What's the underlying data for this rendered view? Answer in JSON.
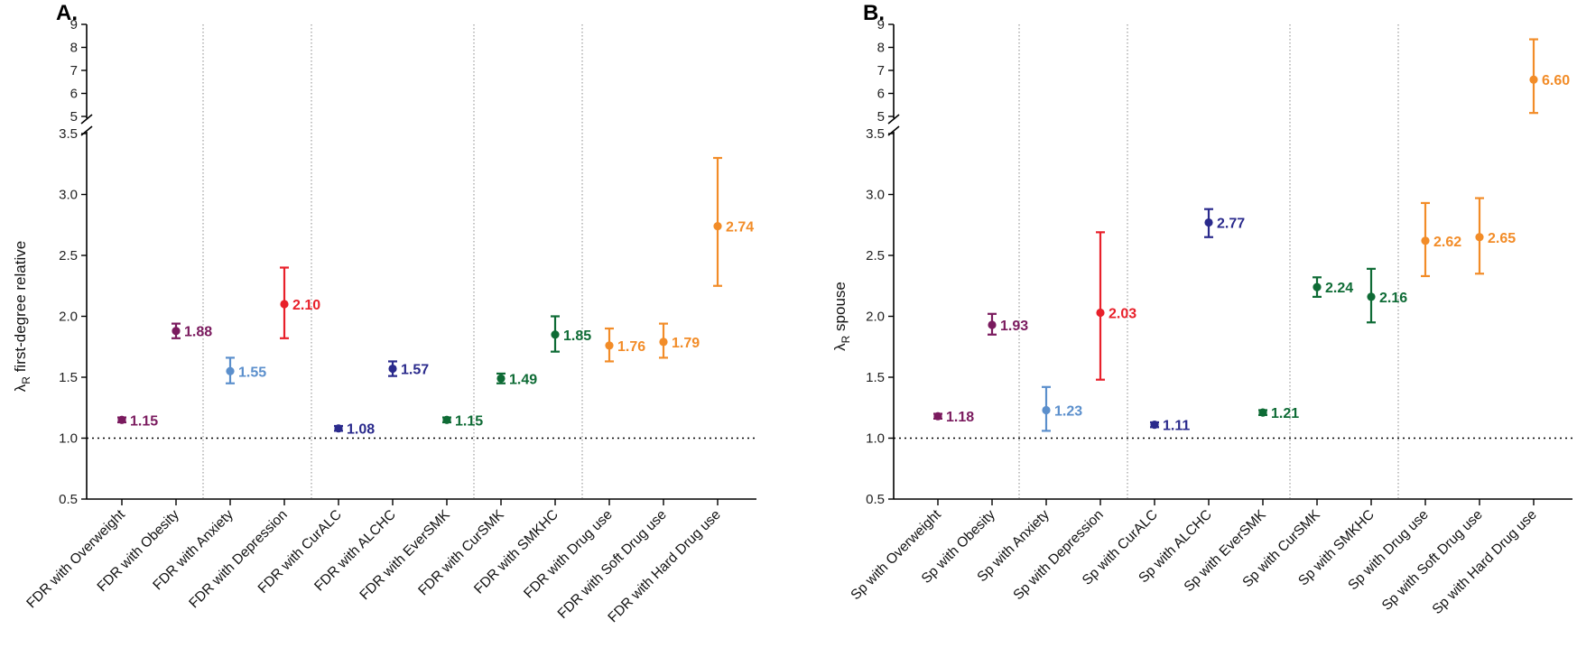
{
  "chart_data": [
    {
      "type": "scatter",
      "panel_label": "A.",
      "ylabel_symbol": "λ",
      "ylabel_sub": "R",
      "ylabel_rest": " first-degree relative",
      "axis_break": true,
      "upper_ticks": [
        5,
        6,
        7,
        8,
        9
      ],
      "lower_ticks": [
        0.5,
        1.0,
        1.5,
        2.0,
        2.5,
        3.0,
        3.5
      ],
      "upper_ylim": [
        5,
        9
      ],
      "lower_ylim": [
        0.5,
        3.5
      ],
      "reference_line": 1.0,
      "group_separators_after": [
        2,
        4,
        7,
        9
      ],
      "categories": [
        "FDR with Overweight",
        "FDR with Obesity",
        "FDR with Anxiety",
        "FDR with Depression",
        "FDR with CurALC",
        "FDR with ALCHC",
        "FDR with EverSMK",
        "FDR with CurSMK",
        "FDR with SMKHC",
        "FDR with Drug use",
        "FDR with Soft Drug use",
        "FDR with Hard Drug use"
      ],
      "values": [
        1.15,
        1.88,
        1.55,
        2.1,
        1.08,
        1.57,
        1.15,
        1.49,
        1.85,
        1.76,
        1.79,
        2.74
      ],
      "value_labels": [
        "1.15",
        "1.88",
        "1.55",
        "2.10",
        "1.08",
        "1.57",
        "1.15",
        "1.49",
        "1.85",
        "1.76",
        "1.79",
        "2.74"
      ],
      "ci_low": [
        1.13,
        1.82,
        1.45,
        1.82,
        1.06,
        1.51,
        1.13,
        1.45,
        1.71,
        1.63,
        1.66,
        2.25
      ],
      "ci_high": [
        1.17,
        1.94,
        1.66,
        2.4,
        1.1,
        1.63,
        1.17,
        1.53,
        2.0,
        1.9,
        1.94,
        3.3
      ],
      "colors": [
        "#7a1a5e",
        "#7a1a5e",
        "#5b8fcc",
        "#e8202a",
        "#2a2a8c",
        "#2a2a8c",
        "#0e6b35",
        "#0e6b35",
        "#0e6b35",
        "#f28c28",
        "#f28c28",
        "#f28c28"
      ]
    },
    {
      "type": "scatter",
      "panel_label": "B.",
      "ylabel_symbol": "λ",
      "ylabel_sub": "R",
      "ylabel_rest": " spouse",
      "axis_break": true,
      "upper_ticks": [
        5,
        6,
        7,
        8,
        9
      ],
      "lower_ticks": [
        0.5,
        1.0,
        1.5,
        2.0,
        2.5,
        3.0,
        3.5
      ],
      "upper_ylim": [
        5,
        9
      ],
      "lower_ylim": [
        0.5,
        3.5
      ],
      "reference_line": 1.0,
      "group_separators_after": [
        2,
        4,
        7,
        9
      ],
      "categories": [
        "Sp with Overweight",
        "Sp with Obesity",
        "Sp with Anxiety",
        "Sp with Depression",
        "Sp with CurALC",
        "Sp with ALCHC",
        "Sp with EverSMK",
        "Sp with CurSMK",
        "Sp with SMKHC",
        "Sp with Drug use",
        "Sp with Soft Drug use",
        "Sp with Hard Drug use"
      ],
      "values": [
        1.18,
        1.93,
        1.23,
        2.03,
        1.11,
        2.77,
        1.21,
        2.24,
        2.16,
        2.62,
        2.65,
        6.6
      ],
      "value_labels": [
        "1.18",
        "1.93",
        "1.23",
        "2.03",
        "1.11",
        "2.77",
        "1.21",
        "2.24",
        "2.16",
        "2.62",
        "2.65",
        "6.60"
      ],
      "ci_low": [
        1.16,
        1.85,
        1.06,
        1.48,
        1.09,
        2.65,
        1.19,
        2.16,
        1.95,
        2.33,
        2.35,
        5.15
      ],
      "ci_high": [
        1.2,
        2.02,
        1.42,
        2.69,
        1.13,
        2.88,
        1.23,
        2.32,
        2.39,
        2.93,
        2.97,
        8.35
      ],
      "colors": [
        "#7a1a5e",
        "#7a1a5e",
        "#5b8fcc",
        "#e8202a",
        "#2a2a8c",
        "#2a2a8c",
        "#0e6b35",
        "#0e6b35",
        "#0e6b35",
        "#f28c28",
        "#f28c28",
        "#f28c28"
      ]
    }
  ]
}
